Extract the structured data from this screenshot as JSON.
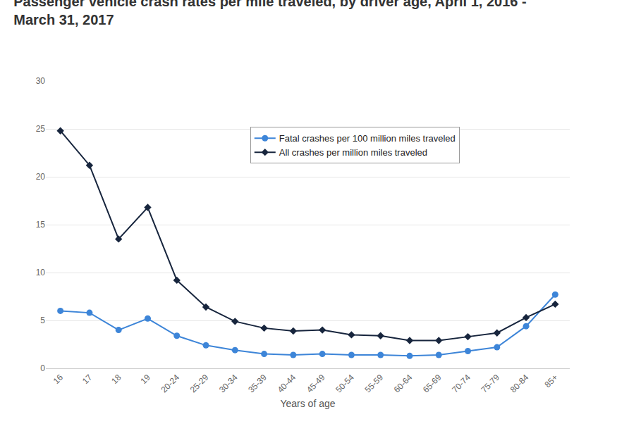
{
  "chart_data": {
    "type": "line",
    "title": "Passenger vehicle crash rates per mile traveled, by driver age, April 1, 2016 - March 31, 2017",
    "x_label": "Years of age",
    "categories": [
      "16",
      "17",
      "18",
      "19",
      "20-24",
      "25-29",
      "30-34",
      "35-39",
      "40-44",
      "45-49",
      "50-54",
      "55-59",
      "60-64",
      "65-69",
      "70-74",
      "75-79",
      "80-84",
      "85+"
    ],
    "series": [
      {
        "name": "Fatal crashes per 100 million miles traveled",
        "color": "#3d85d8",
        "marker": "circle",
        "values": [
          6.0,
          5.8,
          4.0,
          5.2,
          3.4,
          2.4,
          1.9,
          1.5,
          1.4,
          1.5,
          1.4,
          1.4,
          1.3,
          1.4,
          1.8,
          2.2,
          4.4,
          7.7
        ]
      },
      {
        "name": "All crashes per million miles traveled",
        "color": "#17253d",
        "marker": "diamond",
        "values": [
          24.8,
          21.2,
          13.5,
          16.8,
          9.2,
          6.4,
          4.9,
          4.2,
          3.9,
          4.0,
          3.5,
          3.4,
          2.9,
          2.9,
          3.3,
          3.7,
          5.3,
          6.7
        ]
      }
    ],
    "ylim": [
      0,
      30
    ],
    "yticks": [
      0,
      5,
      10,
      15,
      20,
      25,
      30
    ],
    "grid": true,
    "legend": "top"
  }
}
